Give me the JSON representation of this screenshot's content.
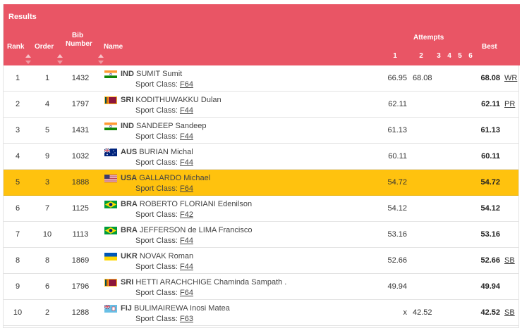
{
  "results": {
    "title": "Results",
    "headers": {
      "rank": "Rank",
      "order": "Order",
      "bib": "Bib Number",
      "name": "Name",
      "attempts": "Attempts",
      "attempt_nums": [
        "1",
        "2",
        "3",
        "4",
        "5",
        "6"
      ],
      "best": "Best"
    },
    "rows": [
      {
        "rank": "1",
        "order": "1",
        "bib": "1432",
        "noc": "IND",
        "name": "SUMIT Sumit",
        "class_label": "Sport Class:",
        "class": "F64",
        "a1": "66.95",
        "a2": "68.08",
        "best": "68.08",
        "record": "WR",
        "flag": "IND"
      },
      {
        "rank": "2",
        "order": "4",
        "bib": "1797",
        "noc": "SRI",
        "name": "KODITHUWAKKU Dulan",
        "class_label": "Sport Class:",
        "class": "F44",
        "a1": "62.11",
        "a2": "",
        "best": "62.11",
        "record": "PR",
        "flag": "SRI"
      },
      {
        "rank": "3",
        "order": "5",
        "bib": "1431",
        "noc": "IND",
        "name": "SANDEEP Sandeep",
        "class_label": "Sport Class:",
        "class": "F44",
        "a1": "61.13",
        "a2": "",
        "best": "61.13",
        "record": "",
        "flag": "IND"
      },
      {
        "rank": "4",
        "order": "9",
        "bib": "1032",
        "noc": "AUS",
        "name": "BURIAN Michal",
        "class_label": "Sport Class:",
        "class": "F44",
        "a1": "60.11",
        "a2": "",
        "best": "60.11",
        "record": "",
        "flag": "AUS"
      },
      {
        "rank": "5",
        "order": "3",
        "bib": "1888",
        "noc": "USA",
        "name": "GALLARDO Michael",
        "class_label": "Sport Class:",
        "class": "F64",
        "a1": "54.72",
        "a2": "",
        "best": "54.72",
        "record": "",
        "flag": "USA",
        "highlight": true
      },
      {
        "rank": "6",
        "order": "7",
        "bib": "1125",
        "noc": "BRA",
        "name": "ROBERTO FLORIANI Edenilson",
        "class_label": "Sport Class:",
        "class": "F42",
        "a1": "54.12",
        "a2": "",
        "best": "54.12",
        "record": "",
        "flag": "BRA"
      },
      {
        "rank": "7",
        "order": "10",
        "bib": "1113",
        "noc": "BRA",
        "name": "JEFFERSON de LIMA Francisco",
        "class_label": "Sport Class:",
        "class": "F44",
        "a1": "53.16",
        "a2": "",
        "best": "53.16",
        "record": "",
        "flag": "BRA"
      },
      {
        "rank": "8",
        "order": "8",
        "bib": "1869",
        "noc": "UKR",
        "name": "NOVAK Roman",
        "class_label": "Sport Class:",
        "class": "F44",
        "a1": "52.66",
        "a2": "",
        "best": "52.66",
        "record": "SB",
        "flag": "UKR"
      },
      {
        "rank": "9",
        "order": "6",
        "bib": "1796",
        "noc": "SRI",
        "name": "HETTI ARACHCHIGE Chaminda Sampath .",
        "class_label": "Sport Class:",
        "class": "F64",
        "a1": "49.94",
        "a2": "",
        "best": "49.94",
        "record": "",
        "flag": "SRI"
      },
      {
        "rank": "10",
        "order": "2",
        "bib": "1288",
        "noc": "FIJ",
        "name": "BULIMAIREWA Inosi Matea",
        "class_label": "Sport Class:",
        "class": "F63",
        "a1": "x",
        "a2": "42.52",
        "best": "42.52",
        "record": "SB",
        "flag": "FIJ"
      }
    ]
  },
  "colors": {
    "header_bg": "#e95565",
    "highlight_row": "#ffc20e"
  }
}
